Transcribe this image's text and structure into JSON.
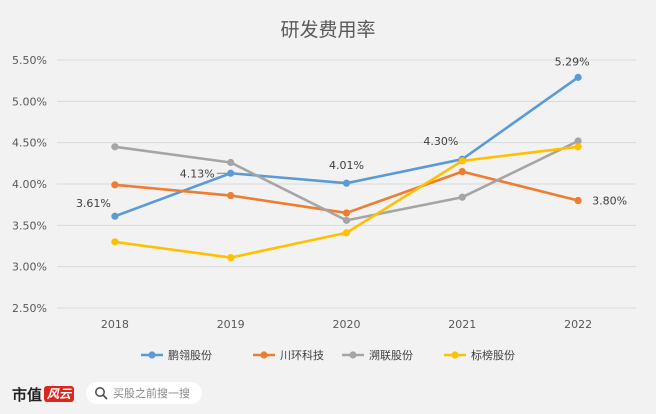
{
  "chart_data": {
    "type": "line",
    "title": "研发费用率",
    "categories": [
      "2018",
      "2019",
      "2020",
      "2021",
      "2022"
    ],
    "y_ticks": [
      "2.50%",
      "3.00%",
      "3.50%",
      "4.00%",
      "4.50%",
      "5.00%",
      "5.50%"
    ],
    "ylim": [
      2.5,
      5.5
    ],
    "grid": true,
    "legend_position": "bottom",
    "series": [
      {
        "name": "鹏翎股份",
        "color": "#5b9bd5",
        "values": [
          3.61,
          4.13,
          4.01,
          4.3,
          5.29
        ],
        "labels": [
          {
            "index": 0,
            "text": "3.61%"
          },
          {
            "index": 1,
            "text": "4.13%"
          },
          {
            "index": 2,
            "text": "4.01%"
          },
          {
            "index": 3,
            "text": "4.30%"
          },
          {
            "index": 4,
            "text": "5.29%"
          }
        ]
      },
      {
        "name": "川环科技",
        "color": "#ed7d31",
        "values": [
          3.99,
          3.86,
          3.65,
          4.15,
          3.8
        ],
        "labels": [
          {
            "index": 4,
            "text": "3.80%"
          }
        ]
      },
      {
        "name": "溯联股份",
        "color": "#a5a5a5",
        "values": [
          4.45,
          4.26,
          3.56,
          3.84,
          4.52
        ],
        "labels": []
      },
      {
        "name": "标榜股份",
        "color": "#ffc000",
        "values": [
          3.3,
          3.11,
          3.41,
          4.28,
          4.45
        ],
        "labels": []
      }
    ]
  },
  "footer": {
    "brand": "市值",
    "brand_mark": "风云",
    "search_placeholder": "买股之前搜一搜"
  }
}
